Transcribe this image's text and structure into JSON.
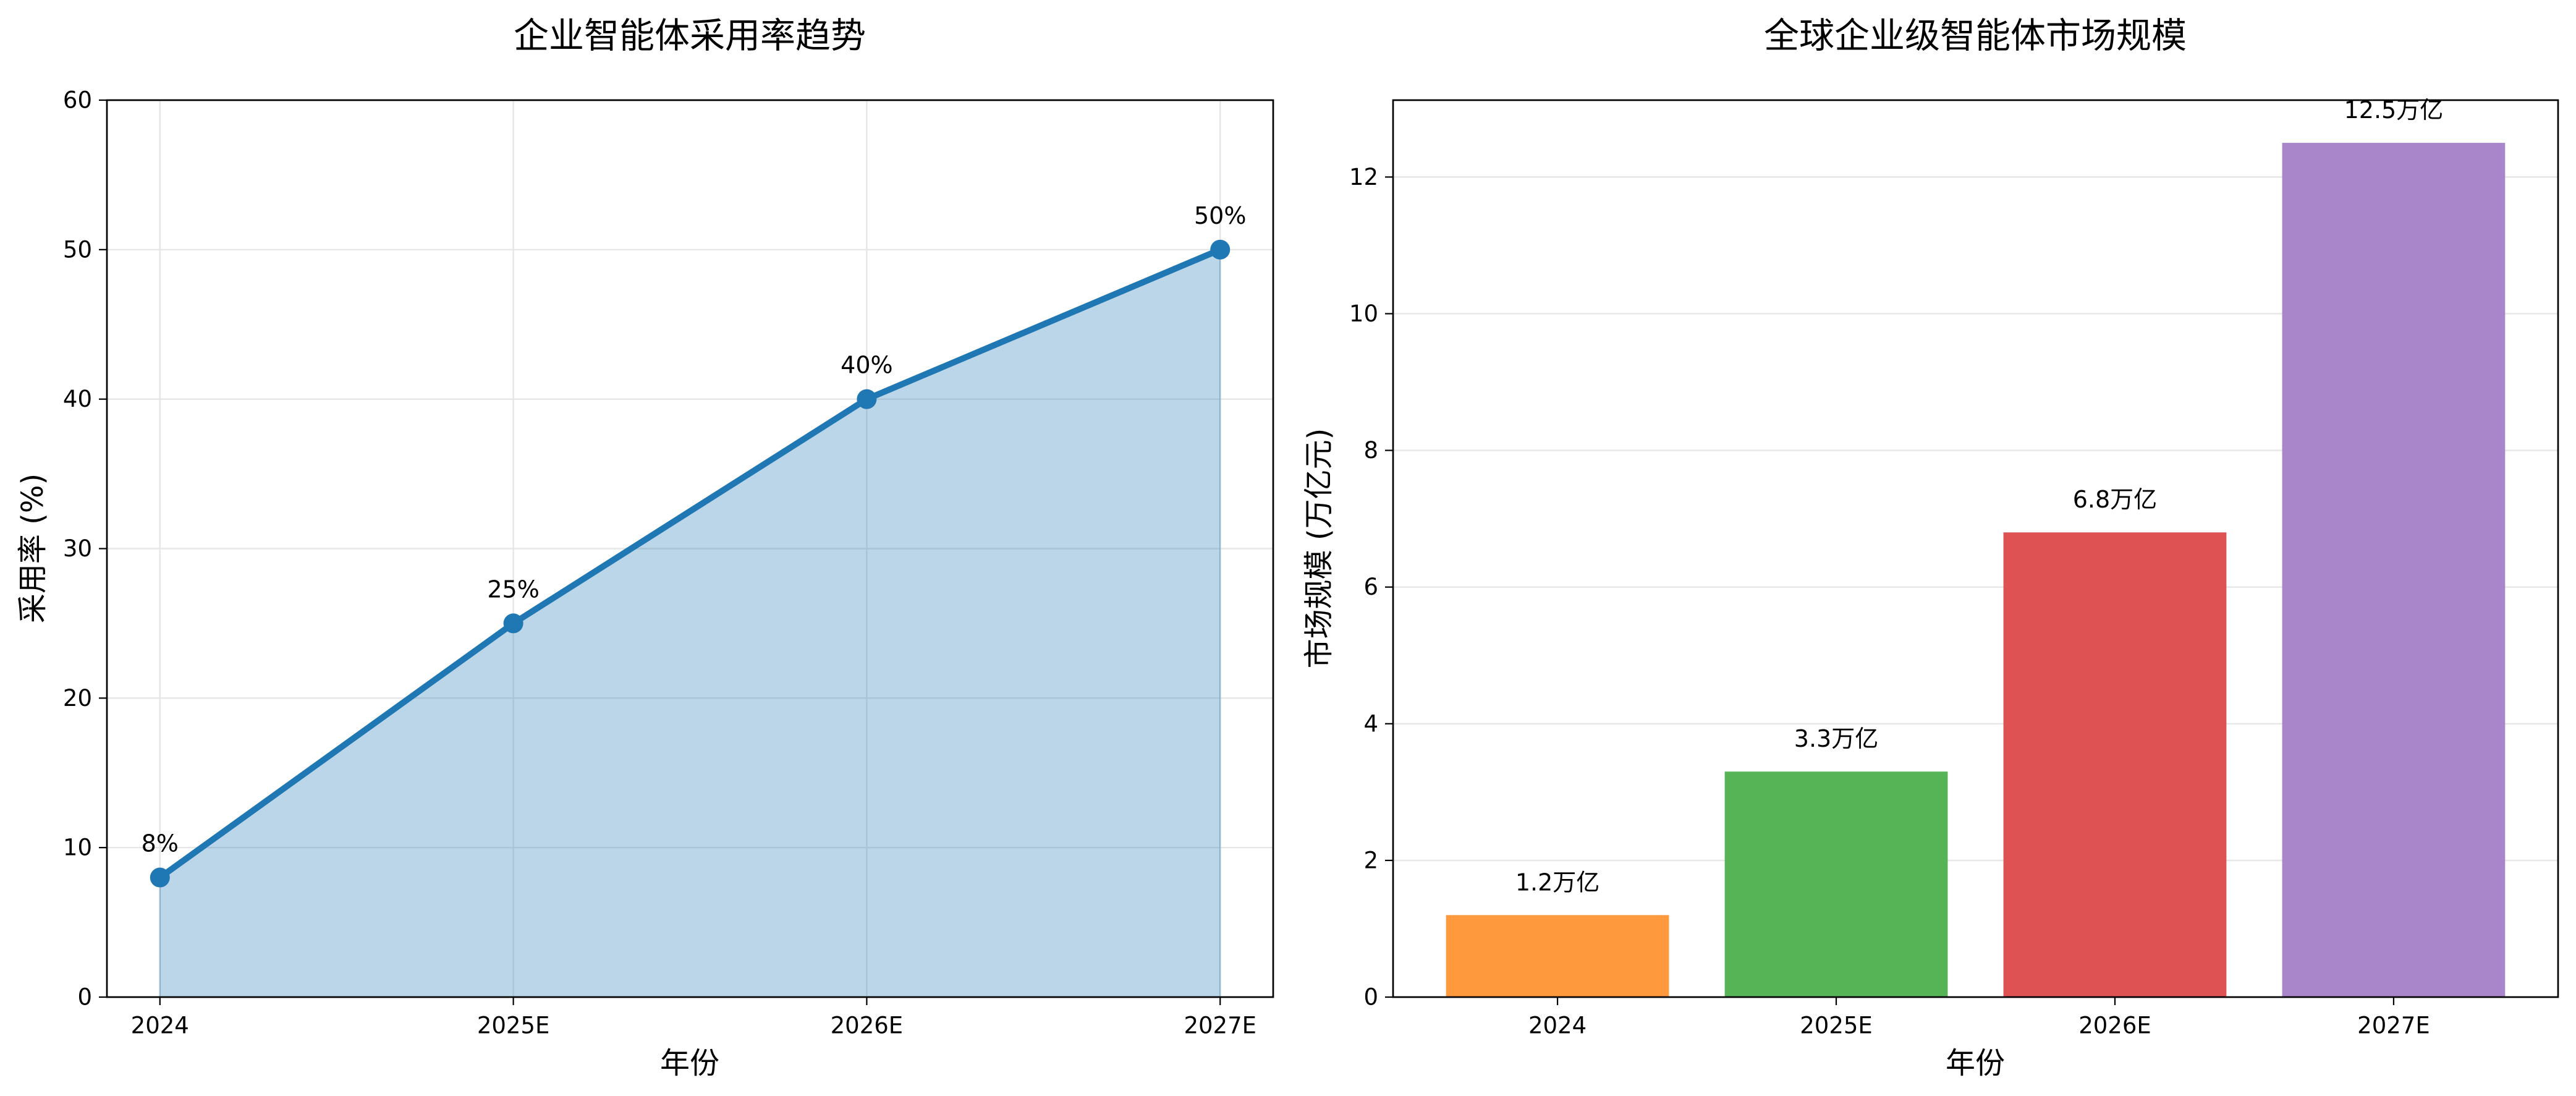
{
  "chart_data": [
    {
      "type": "area",
      "title": "企业智能体采用率趋势",
      "xlabel": "年份",
      "ylabel": "采用率 (%)",
      "categories": [
        "2024",
        "2025E",
        "2026E",
        "2027E"
      ],
      "values": [
        8,
        25,
        40,
        50
      ],
      "data_labels": [
        "8%",
        "25%",
        "40%",
        "50%"
      ],
      "ylim": [
        0,
        60
      ],
      "yticks": [
        0,
        10,
        20,
        30,
        40,
        50,
        60
      ],
      "markers": "circle",
      "grid": "both",
      "legend": "none",
      "colors": {
        "line": "#1f77b4",
        "fill": "#1f77b4",
        "fill_alpha": 0.3
      }
    },
    {
      "type": "bar",
      "title": "全球企业级智能体市场规模",
      "xlabel": "年份",
      "ylabel": "市场规模 (万亿元)",
      "categories": [
        "2024",
        "2025E",
        "2026E",
        "2027E"
      ],
      "values": [
        1.2,
        3.3,
        6.8,
        12.5
      ],
      "data_labels": [
        "1.2万亿",
        "3.3万亿",
        "6.8万亿",
        "12.5万亿"
      ],
      "ylim": [
        0,
        13.125
      ],
      "yticks": [
        0,
        2,
        4,
        6,
        8,
        10,
        12
      ],
      "grid": "y",
      "legend": "none",
      "colors": [
        "#ff993e",
        "#56b356",
        "#de5253",
        "#a985ca"
      ]
    }
  ]
}
